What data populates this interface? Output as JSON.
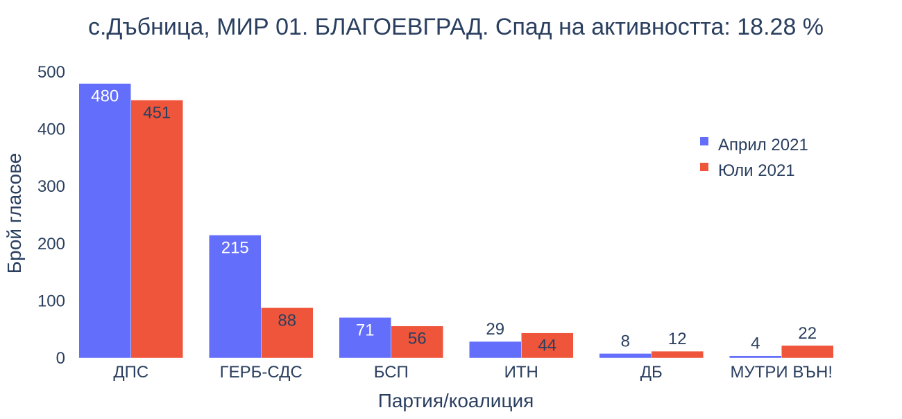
{
  "chart_data": {
    "type": "bar",
    "title": "с.Дъбница, МИР 01. БЛАГОЕВГРАД. Спад на активността: 18.28 %",
    "xlabel": "Партия/коалиция",
    "ylabel": "Брой гласове",
    "categories": [
      "ДПС",
      "ГЕРБ-СДС",
      "БСП",
      "ИТН",
      "ДБ",
      "МУТРИ ВЪН!"
    ],
    "series": [
      {
        "name": "Април 2021",
        "color": "#636efa",
        "values": [
          480,
          215,
          71,
          29,
          8,
          4
        ]
      },
      {
        "name": "Юли 2021",
        "color": "#ef553b",
        "values": [
          451,
          88,
          56,
          44,
          12,
          22
        ]
      }
    ],
    "ylim": [
      0,
      500
    ],
    "yticks": [
      0,
      100,
      200,
      300,
      400,
      500
    ],
    "grid": false,
    "legend_position": "right"
  }
}
